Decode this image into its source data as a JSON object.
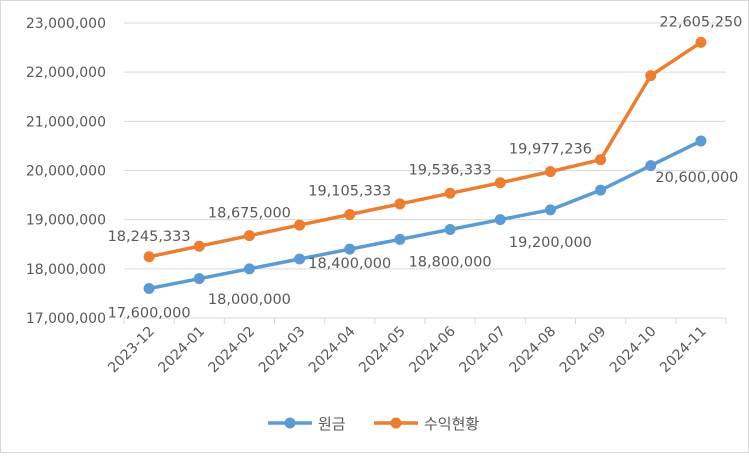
{
  "chart_data": {
    "type": "line",
    "title": "",
    "xlabel": "",
    "ylabel": "",
    "categories": [
      "2023-12",
      "2024-01",
      "2024-02",
      "2024-03",
      "2024-04",
      "2024-05",
      "2024-06",
      "2024-07",
      "2024-08",
      "2024-09",
      "2024-10",
      "2024-11"
    ],
    "ylim": [
      17000000,
      23000000
    ],
    "yticks": [
      17000000,
      18000000,
      19000000,
      20000000,
      21000000,
      22000000,
      23000000
    ],
    "ytick_labels": [
      "17,000,000",
      "18,000,000",
      "19,000,000",
      "20,000,000",
      "21,000,000",
      "22,000,000",
      "23,000,000"
    ],
    "grid": true,
    "legend_position": "bottom",
    "series": [
      {
        "name": "원금",
        "color": "#5B9BD5",
        "values": [
          17600000,
          17800000,
          18000000,
          18200000,
          18400000,
          18600000,
          18800000,
          19000000,
          19200000,
          19600000,
          20100000,
          20600000
        ],
        "data_labels": [
          {
            "index": 0,
            "text": "17,600,000"
          },
          {
            "index": 2,
            "text": "18,000,000"
          },
          {
            "index": 4,
            "text": "18,400,000"
          },
          {
            "index": 6,
            "text": "18,800,000"
          },
          {
            "index": 8,
            "text": "19,200,000"
          },
          {
            "index": 11,
            "text": "20,600,000"
          }
        ]
      },
      {
        "name": "수익현황",
        "color": "#ED7D31",
        "values": [
          18245333,
          18460000,
          18675000,
          18890000,
          19105333,
          19320000,
          19536333,
          19750000,
          19977236,
          20220000,
          21930000,
          22605250
        ],
        "data_labels": [
          {
            "index": 0,
            "text": "18,245,333"
          },
          {
            "index": 2,
            "text": "18,675,000"
          },
          {
            "index": 4,
            "text": "19,105,333"
          },
          {
            "index": 6,
            "text": "19,536,333"
          },
          {
            "index": 8,
            "text": "19,977,236"
          },
          {
            "index": 11,
            "text": "22,605,250"
          }
        ]
      }
    ]
  }
}
